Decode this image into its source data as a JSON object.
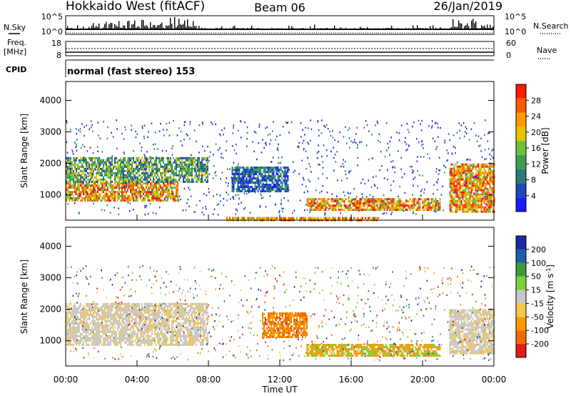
{
  "header": {
    "station": "Hokkaido West (fitACF)",
    "beam": "Beam 06",
    "date": "26/Jan/2019"
  },
  "top_panels": {
    "nsky_label": "N.Sky",
    "nsearch_label": "N.Search",
    "nsky_ticks": [
      "10^5",
      "10^0"
    ],
    "freq_label_1": "Freq.",
    "freq_label_2": "[MHz]",
    "freq_ticks": [
      "18",
      "8"
    ],
    "nave_label": "Nave",
    "nave_ticks": [
      "60",
      "0"
    ],
    "cpid_label": "CPID",
    "cpid_text": "normal (fast stereo) 153"
  },
  "colors": {
    "power_scale": [
      "#1a1aff",
      "#1f49b3",
      "#2a7a7a",
      "#3aa050",
      "#6cc23a",
      "#e8c400",
      "#ff9a00",
      "#ff5a00",
      "#ff1a00"
    ],
    "velocity_scale": [
      "#e41a1c",
      "#f06a00",
      "#ff9900",
      "#f5c64a",
      "#c8c8c8",
      "#7ccf3a",
      "#3a9a3a",
      "#1f5ea8",
      "#1a2aa0"
    ]
  },
  "chart_data": [
    {
      "type": "heatmap",
      "panel": "power",
      "ylabel": "Slant Range [km]",
      "yticks": [
        "1000",
        "2000",
        "3000",
        "4000"
      ],
      "ylim": [
        200,
        4600
      ],
      "xticks": [
        "00:00",
        "04:00",
        "08:00",
        "12:00",
        "16:00",
        "20:00",
        "00:00"
      ],
      "xlim": [
        0,
        24
      ],
      "colorbar_label": "Power [dB]",
      "colorbar_ticks": [
        "4",
        "8",
        "12",
        "16",
        "20",
        "24",
        "28"
      ],
      "regions": [
        {
          "x": [
            0.0,
            6.3
          ],
          "range_km": [
            800,
            1400
          ],
          "level": "high"
        },
        {
          "x": [
            0.0,
            8.0
          ],
          "range_km": [
            1400,
            2200
          ],
          "level": "medium"
        },
        {
          "x": [
            9.3,
            12.5
          ],
          "range_km": [
            1100,
            1900
          ],
          "level": "low"
        },
        {
          "x": [
            13.5,
            21.0
          ],
          "range_km": [
            550,
            900
          ],
          "level": "high"
        },
        {
          "x": [
            21.5,
            24.0
          ],
          "range_km": [
            500,
            2000
          ],
          "level": "high"
        },
        {
          "x": [
            9.0,
            17.5
          ],
          "range_km": [
            200,
            300
          ],
          "level": "high"
        }
      ]
    },
    {
      "type": "heatmap",
      "panel": "velocity",
      "ylabel": "Slant Range [km]",
      "yticks": [
        "1000",
        "2000",
        "3000",
        "4000"
      ],
      "ylim": [
        200,
        4600
      ],
      "xticks": [
        "00:00",
        "04:00",
        "08:00",
        "12:00",
        "16:00",
        "20:00",
        "00:00"
      ],
      "xlim": [
        0,
        24
      ],
      "xlabel": "Time UT",
      "colorbar_label": "Velocity [m s^-1]",
      "colorbar_ticks": [
        "200",
        "100",
        "50",
        "15",
        "-15",
        "-50",
        "-100",
        "-200"
      ],
      "regions": [
        {
          "x": [
            0.0,
            8.0
          ],
          "range_km": [
            900,
            2200
          ],
          "velocity": "near zero"
        },
        {
          "x": [
            11.0,
            13.5
          ],
          "range_km": [
            1100,
            1900
          ],
          "velocity": "-50 to -100"
        },
        {
          "x": [
            13.5,
            21.0
          ],
          "range_km": [
            500,
            900
          ],
          "velocity": "-15 to -50"
        },
        {
          "x": [
            21.5,
            24.0
          ],
          "range_km": [
            600,
            2000
          ],
          "velocity": "near zero"
        }
      ]
    }
  ]
}
